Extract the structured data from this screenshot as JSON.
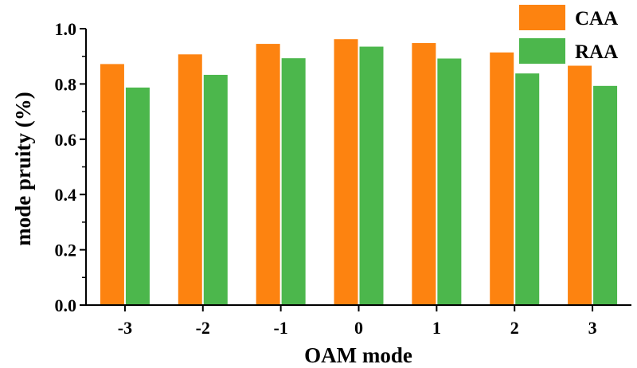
{
  "chart_data": {
    "type": "bar",
    "title": "",
    "xlabel": "OAM mode",
    "ylabel": "mode pruity (%)",
    "categories": [
      "-3",
      "-2",
      "-1",
      "0",
      "1",
      "2",
      "3"
    ],
    "series": [
      {
        "name": "CAA",
        "color": "#fd8310",
        "values": [
          0.872,
          0.907,
          0.945,
          0.962,
          0.948,
          0.914,
          0.866
        ]
      },
      {
        "name": "RAA",
        "color": "#4cb74c",
        "values": [
          0.787,
          0.833,
          0.893,
          0.935,
          0.892,
          0.838,
          0.793
        ]
      }
    ],
    "ylim": [
      0,
      1.0
    ],
    "yticks": [
      "0.0",
      "0.2",
      "0.4",
      "0.6",
      "0.8",
      "1.0"
    ],
    "legend_position": "top-right",
    "grid": false
  }
}
